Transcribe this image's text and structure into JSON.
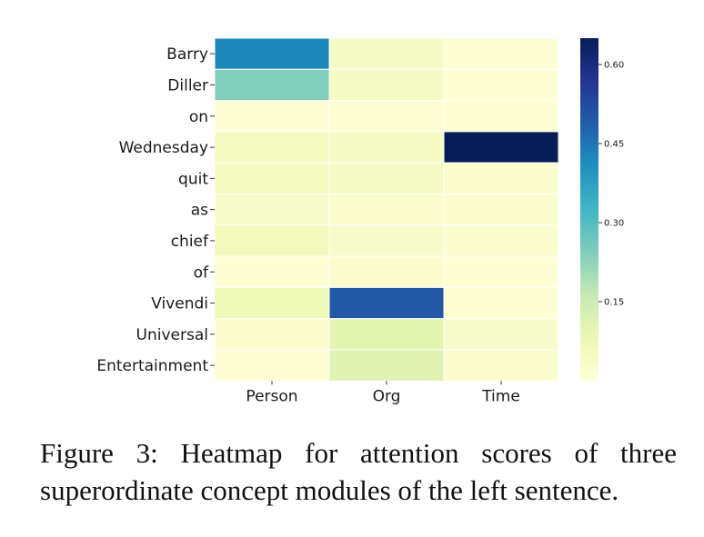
{
  "chart_data": {
    "type": "heatmap",
    "rows": [
      "Barry",
      "Diller",
      "on",
      "Wednesday",
      "quit",
      "as",
      "chief",
      "of",
      "Vivendi",
      "Universal",
      "Entertainment"
    ],
    "columns": [
      "Person",
      "Org",
      "Time"
    ],
    "values": [
      [
        0.42,
        0.04,
        0.01
      ],
      [
        0.24,
        0.04,
        0.01
      ],
      [
        0.01,
        0.01,
        0.01
      ],
      [
        0.05,
        0.04,
        0.65
      ],
      [
        0.05,
        0.04,
        0.02
      ],
      [
        0.03,
        0.02,
        0.02
      ],
      [
        0.06,
        0.03,
        0.02
      ],
      [
        0.01,
        0.02,
        0.01
      ],
      [
        0.07,
        0.5,
        0.01
      ],
      [
        0.02,
        0.1,
        0.03
      ],
      [
        0.01,
        0.11,
        0.02
      ]
    ],
    "colormap": "YlGnBu",
    "vmin": 0,
    "vmax": 0.65,
    "colorbar_ticks": [
      0.15,
      0.3,
      0.45,
      0.6
    ],
    "colorbar_tick_labels": [
      "0.15",
      "0.30",
      "0.45",
      "0.60"
    ],
    "cell_border_color": "#ffffff"
  },
  "caption": "Figure 3: Heatmap for attention scores of three superordinate concept modules of the left sentence."
}
